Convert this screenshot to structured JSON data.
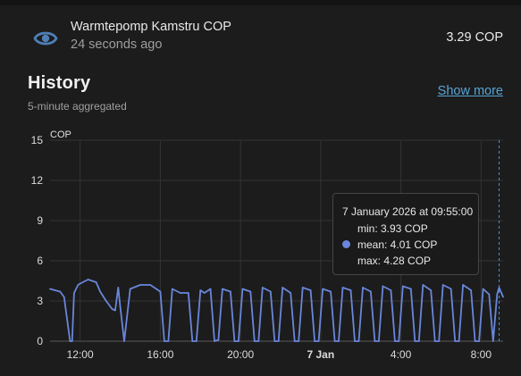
{
  "entity": {
    "name": "Warmtepomp Kamstru COP",
    "last_changed": "24 seconds ago",
    "state": "3.29 COP",
    "icon": "eye-icon"
  },
  "history": {
    "title": "History",
    "subtitle": "5-minute aggregated",
    "show_more": "Show more"
  },
  "colors": {
    "background": "#1c1c1c",
    "line": "#6a86db",
    "link": "#56a5d6"
  },
  "tooltip": {
    "title": "7 January 2026 at 09:55:00",
    "min": "min: 3.93 COP",
    "mean": "mean: 4.01 COP",
    "max": "max: 4.28 COP"
  },
  "chart_data": {
    "type": "line",
    "ylabel": "COP",
    "ylim": [
      0,
      15
    ],
    "yticks": [
      "0",
      "3",
      "6",
      "9",
      "12",
      "15"
    ],
    "xlim_hours": [
      10.5,
      33.1
    ],
    "xticks": [
      {
        "label": "12:00",
        "value": 12,
        "bold": false
      },
      {
        "label": "16:00",
        "value": 16,
        "bold": false
      },
      {
        "label": "20:00",
        "value": 20,
        "bold": false
      },
      {
        "label": "7 Jan",
        "value": 24,
        "bold": true
      },
      {
        "label": "4:00",
        "value": 28,
        "bold": false
      },
      {
        "label": "8:00",
        "value": 32,
        "bold": false
      }
    ],
    "grid": true,
    "hover_x": 32.9,
    "series": [
      {
        "x": [
          10.5,
          11.0,
          11.2,
          11.5,
          11.6,
          11.7,
          11.9,
          12.0,
          12.4,
          12.8,
          13.0,
          13.3,
          13.6,
          13.75,
          13.9,
          14.0,
          14.2,
          14.5,
          15.0,
          15.5,
          15.8,
          16.0,
          16.2,
          16.4,
          16.6,
          17.0,
          17.4,
          17.6,
          17.8,
          18.0,
          18.2,
          18.5,
          18.7,
          18.9,
          19.1,
          19.5,
          19.7,
          19.9,
          20.1,
          20.5,
          20.7,
          20.9,
          21.1,
          21.5,
          21.7,
          21.9,
          22.1,
          22.5,
          22.7,
          22.9,
          23.1,
          23.5,
          23.7,
          23.9,
          24.1,
          24.5,
          24.7,
          24.9,
          25.1,
          25.5,
          25.7,
          25.9,
          26.1,
          26.5,
          26.7,
          26.9,
          27.1,
          27.5,
          27.7,
          27.9,
          28.1,
          28.5,
          28.7,
          28.9,
          29.1,
          29.5,
          29.7,
          29.9,
          30.1,
          30.5,
          30.7,
          30.9,
          31.1,
          31.5,
          31.7,
          31.9,
          32.1,
          32.4,
          32.6,
          32.8,
          32.9,
          33.1
        ],
        "y": [
          3.9,
          3.7,
          3.3,
          0.0,
          0.0,
          3.6,
          4.2,
          4.3,
          4.6,
          4.4,
          3.7,
          3.0,
          2.4,
          2.3,
          4.0,
          2.6,
          0.0,
          3.9,
          4.2,
          4.2,
          3.9,
          3.7,
          0.0,
          0.0,
          3.9,
          3.6,
          3.6,
          0.0,
          0.0,
          3.8,
          3.6,
          3.9,
          0.0,
          0.1,
          3.9,
          3.7,
          0.0,
          0.0,
          3.9,
          3.7,
          0.0,
          0.0,
          4.0,
          3.7,
          0.0,
          0.0,
          4.0,
          3.6,
          0.0,
          0.0,
          4.0,
          3.8,
          0.0,
          0.0,
          3.9,
          3.7,
          0.0,
          0.0,
          4.0,
          3.8,
          0.0,
          0.0,
          4.0,
          3.7,
          0.0,
          0.0,
          4.1,
          3.8,
          0.0,
          0.0,
          4.1,
          3.9,
          0.0,
          0.0,
          4.2,
          3.8,
          0.0,
          0.0,
          4.2,
          3.9,
          0.0,
          0.0,
          4.2,
          3.8,
          0.0,
          0.0,
          3.9,
          3.5,
          0.0,
          3.5,
          4.0,
          3.3
        ]
      }
    ]
  }
}
